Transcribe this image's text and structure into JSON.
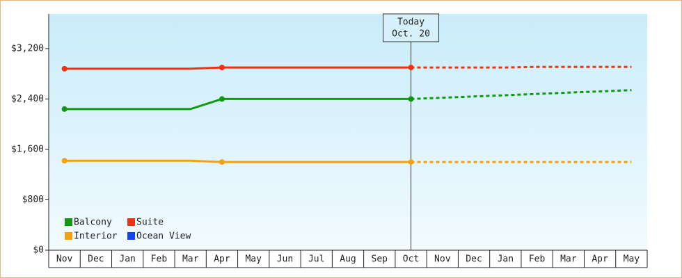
{
  "chart_data": {
    "type": "line",
    "categories": [
      "Nov",
      "Dec",
      "Jan",
      "Feb",
      "Mar",
      "Apr",
      "May",
      "Jun",
      "Jul",
      "Aug",
      "Sep",
      "Oct",
      "Nov",
      "Dec",
      "Jan",
      "Feb",
      "Mar",
      "Apr",
      "May"
    ],
    "series": [
      {
        "name": "Balcony",
        "color": "#119911",
        "values": [
          2240,
          2240,
          2240,
          2240,
          2240,
          2400,
          2400,
          2400,
          2400,
          2400,
          2400,
          2400,
          null,
          null,
          null,
          null,
          null,
          null,
          null
        ],
        "forecast": [
          null,
          null,
          null,
          null,
          null,
          null,
          null,
          null,
          null,
          null,
          null,
          2400,
          2420,
          2440,
          2460,
          2480,
          2500,
          2520,
          2540
        ]
      },
      {
        "name": "Suite",
        "color": "#ee3311",
        "values": [
          2880,
          2880,
          2880,
          2880,
          2880,
          2900,
          2900,
          2900,
          2900,
          2900,
          2900,
          2900,
          null,
          null,
          null,
          null,
          null,
          null,
          null
        ],
        "forecast": [
          null,
          null,
          null,
          null,
          null,
          null,
          null,
          null,
          null,
          null,
          null,
          2900,
          2900,
          2900,
          2900,
          2910,
          2910,
          2910,
          2910
        ]
      },
      {
        "name": "Interior",
        "color": "#f5a010",
        "values": [
          1420,
          1420,
          1420,
          1420,
          1420,
          1400,
          1400,
          1400,
          1400,
          1400,
          1400,
          1400,
          null,
          null,
          null,
          null,
          null,
          null,
          null
        ],
        "forecast": [
          null,
          null,
          null,
          null,
          null,
          null,
          null,
          null,
          null,
          null,
          null,
          1400,
          1400,
          1400,
          1400,
          1400,
          1400,
          1400,
          1400
        ]
      },
      {
        "name": "Ocean View",
        "color": "#1144ee",
        "values": [
          null,
          null,
          null,
          null,
          null,
          null,
          null,
          null,
          null,
          null,
          null,
          null,
          null,
          null,
          null,
          null,
          null,
          null,
          null
        ],
        "forecast": [
          null,
          null,
          null,
          null,
          null,
          null,
          null,
          null,
          null,
          null,
          null,
          null,
          null,
          null,
          null,
          null,
          null,
          null,
          null
        ]
      }
    ],
    "today": {
      "label": "Today",
      "date": "Oct. 20"
    },
    "ylim": [
      0,
      3750
    ],
    "yticks": [
      {
        "value": 0,
        "label": "$0"
      },
      {
        "value": 800,
        "label": "$800"
      },
      {
        "value": 1600,
        "label": "$1,600"
      },
      {
        "value": 2400,
        "label": "$2,400"
      },
      {
        "value": 3200,
        "label": "$3,200"
      }
    ],
    "legend": "bottom-left"
  }
}
